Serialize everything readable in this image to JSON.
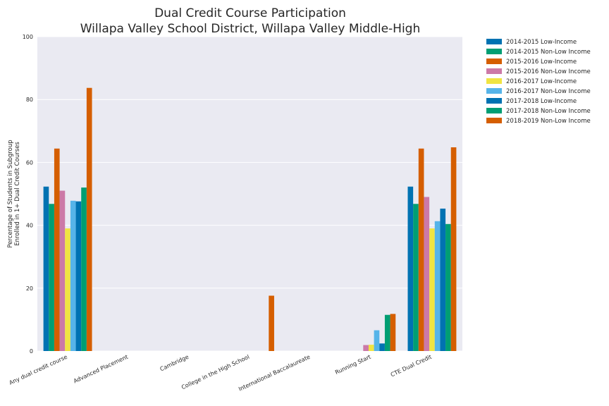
{
  "chart_data": {
    "type": "bar",
    "title": [
      "Dual Credit Course Participation",
      "Willapa Valley School District, Willapa Valley Middle-High"
    ],
    "ylabel": [
      "Percentage of Students in Subgroup",
      "Enrolled in 1+ Dual Credit Courses"
    ],
    "xlabel": "",
    "ylim": [
      0,
      100
    ],
    "yticks": [
      0,
      20,
      40,
      60,
      80,
      100
    ],
    "grid": true,
    "legend_position": "outside-top-right",
    "categories": [
      "Any dual credit course",
      "Advanced Placement",
      "Cambridge",
      "College in the High School",
      "International Baccalaureate",
      "Running Start",
      "CTE Dual Credit"
    ],
    "series": [
      {
        "name": "2014-2015 Low-Income",
        "color": "#0072b2",
        "values": [
          52.3,
          0,
          0,
          0,
          0,
          0,
          52.3
        ]
      },
      {
        "name": "2014-2015 Non-Low Income",
        "color": "#009e73",
        "values": [
          46.8,
          0,
          0,
          0,
          0,
          0,
          46.8
        ]
      },
      {
        "name": "2015-2016 Low-Income",
        "color": "#d55e00",
        "values": [
          64.4,
          0,
          0,
          0,
          0,
          0,
          64.4
        ]
      },
      {
        "name": "2015-2016 Non-Low Income",
        "color": "#cc79a7",
        "values": [
          51.0,
          0,
          0,
          0,
          0,
          1.9,
          49.0
        ]
      },
      {
        "name": "2016-2017 Low-Income",
        "color": "#f0e442",
        "values": [
          39.0,
          0,
          0,
          0,
          0,
          2.0,
          39.0
        ]
      },
      {
        "name": "2016-2017 Non-Low Income",
        "color": "#56b4e9",
        "values": [
          47.8,
          0,
          0,
          0,
          0,
          6.6,
          41.3
        ]
      },
      {
        "name": "2017-2018 Low-Income",
        "color": "#0072b2",
        "values": [
          47.6,
          0,
          0,
          0,
          0,
          2.4,
          45.3
        ]
      },
      {
        "name": "2017-2018 Non-Low Income",
        "color": "#009e73",
        "values": [
          52.0,
          0,
          0,
          0,
          0,
          11.5,
          40.4
        ]
      },
      {
        "name": "2018-2019 Non-Low Income",
        "color": "#d55e00",
        "values": [
          83.7,
          0,
          0,
          17.6,
          0,
          11.8,
          64.8
        ]
      }
    ]
  }
}
